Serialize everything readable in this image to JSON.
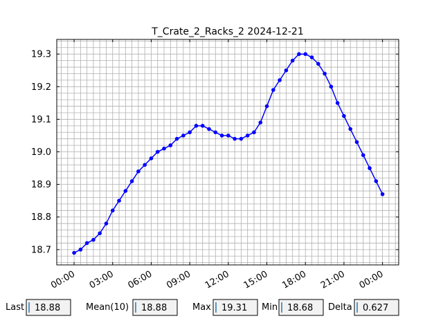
{
  "chart_data": {
    "type": "line",
    "title": "T_Crate_2_Racks_2 2024-12-21",
    "x": [
      0,
      0.5,
      1,
      1.5,
      2,
      2.5,
      3,
      3.5,
      4,
      4.5,
      5,
      5.5,
      6,
      6.5,
      7,
      7.5,
      8,
      8.5,
      9,
      9.5,
      10,
      10.5,
      11,
      11.5,
      12,
      12.5,
      13,
      13.5,
      14,
      14.5,
      15,
      15.5,
      16,
      16.5,
      17,
      17.5,
      18,
      18.5,
      19,
      19.5,
      20,
      20.5,
      21,
      21.5,
      22,
      22.5,
      23,
      23.5,
      24
    ],
    "series": [
      {
        "name": "T_Crate_2_Racks_2",
        "color": "#0000ff",
        "values": [
          18.69,
          18.7,
          18.72,
          18.73,
          18.75,
          18.78,
          18.82,
          18.85,
          18.88,
          18.91,
          18.94,
          18.96,
          18.98,
          19.0,
          19.01,
          19.02,
          19.04,
          19.05,
          19.06,
          19.08,
          19.08,
          19.07,
          19.06,
          19.05,
          19.05,
          19.04,
          19.04,
          19.05,
          19.06,
          19.09,
          19.14,
          19.19,
          19.22,
          19.25,
          19.28,
          19.3,
          19.3,
          19.29,
          19.27,
          19.24,
          19.2,
          19.15,
          19.11,
          19.07,
          19.03,
          18.99,
          18.95,
          18.91,
          18.87
        ]
      }
    ],
    "xlim": [
      -1.35,
      25.26
    ],
    "ylim": [
      18.653,
      19.345
    ],
    "xticks": [
      {
        "value": 0,
        "label": "00:00"
      },
      {
        "value": 3,
        "label": "03:00"
      },
      {
        "value": 6,
        "label": "06:00"
      },
      {
        "value": 9,
        "label": "09:00"
      },
      {
        "value": 12,
        "label": "12:00"
      },
      {
        "value": 15,
        "label": "15:00"
      },
      {
        "value": 18,
        "label": "18:00"
      },
      {
        "value": 21,
        "label": "21:00"
      },
      {
        "value": 24,
        "label": "00:00"
      }
    ],
    "yticks": [
      {
        "value": 18.7,
        "label": "18.7"
      },
      {
        "value": 18.8,
        "label": "18.8"
      },
      {
        "value": 18.9,
        "label": "18.9"
      },
      {
        "value": 19.0,
        "label": "19.0"
      },
      {
        "value": 19.1,
        "label": "19.1"
      },
      {
        "value": 19.2,
        "label": "19.2"
      },
      {
        "value": 19.3,
        "label": "19.3"
      }
    ],
    "xminorticks": [
      -1,
      -0.5,
      0,
      0.5,
      1,
      1.5,
      2,
      2.5,
      3,
      3.5,
      4,
      4.5,
      5,
      5.5,
      6,
      6.5,
      7,
      7.5,
      8,
      8.5,
      9,
      9.5,
      10,
      10.5,
      11,
      11.5,
      12,
      12.5,
      13,
      13.5,
      14,
      14.5,
      15,
      15.5,
      16,
      16.5,
      17,
      17.5,
      18,
      18.5,
      19,
      19.5,
      20,
      20.5,
      21,
      21.5,
      22,
      22.5,
      23,
      23.5,
      24,
      24.5,
      25
    ],
    "yminorticks": [
      18.66,
      18.68,
      18.7,
      18.72,
      18.74,
      18.76,
      18.78,
      18.8,
      18.82,
      18.84,
      18.86,
      18.88,
      18.9,
      18.92,
      18.94,
      18.96,
      18.98,
      19.0,
      19.02,
      19.04,
      19.06,
      19.08,
      19.1,
      19.12,
      19.14,
      19.16,
      19.18,
      19.2,
      19.22,
      19.24,
      19.26,
      19.28,
      19.3,
      19.32,
      19.34
    ],
    "grid": true
  },
  "widgets": [
    {
      "label": "Last",
      "value": "18.88"
    },
    {
      "label": "Mean(10)",
      "value": "18.88"
    },
    {
      "label": "Max",
      "value": "19.31"
    },
    {
      "label": "Min",
      "value": "18.68"
    },
    {
      "label": "Delta",
      "value": "0.627"
    }
  ]
}
